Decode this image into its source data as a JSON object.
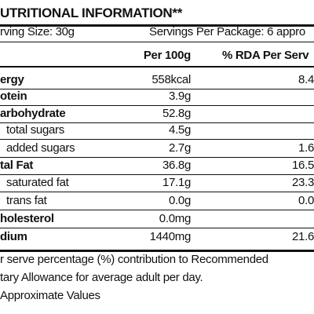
{
  "title": "UTRITIONAL INFORMATION**",
  "serving_size": "rving Size: 30g",
  "servings_per_package": "Servings Per Package: 6 appro",
  "columns": [
    "Per 100g",
    "% RDA Per Serv"
  ],
  "rows": [
    {
      "label": "ergy",
      "per_100g": "558kcal",
      "rda": "8.4"
    },
    {
      "label": "otein",
      "per_100g": "3.9g"
    },
    {
      "label": "arbohydrate",
      "per_100g": "52.8g"
    },
    {
      "label": "total sugars",
      "per_100g": "4.5g"
    },
    {
      "label": "added sugars",
      "per_100g": "2.7g",
      "rda": "1.6"
    },
    {
      "label": "tal Fat",
      "per_100g": "36.8g",
      "rda": "16.5"
    },
    {
      "label": "saturated fat",
      "per_100g": "17.1g",
      "rda": "23.3"
    },
    {
      "label": "trans fat",
      "per_100g": "0.0g",
      "rda": "0.0"
    },
    {
      "label": "holesterol",
      "per_100g": "0.0mg"
    },
    {
      "label": "dium",
      "per_100g": "1440mg",
      "rda": "21.6"
    }
  ],
  "footnotes": [
    "r serve percentage (%) contribution to Recommended",
    "tary Allowance for average adult per day.",
    "Approximate Values"
  ]
}
